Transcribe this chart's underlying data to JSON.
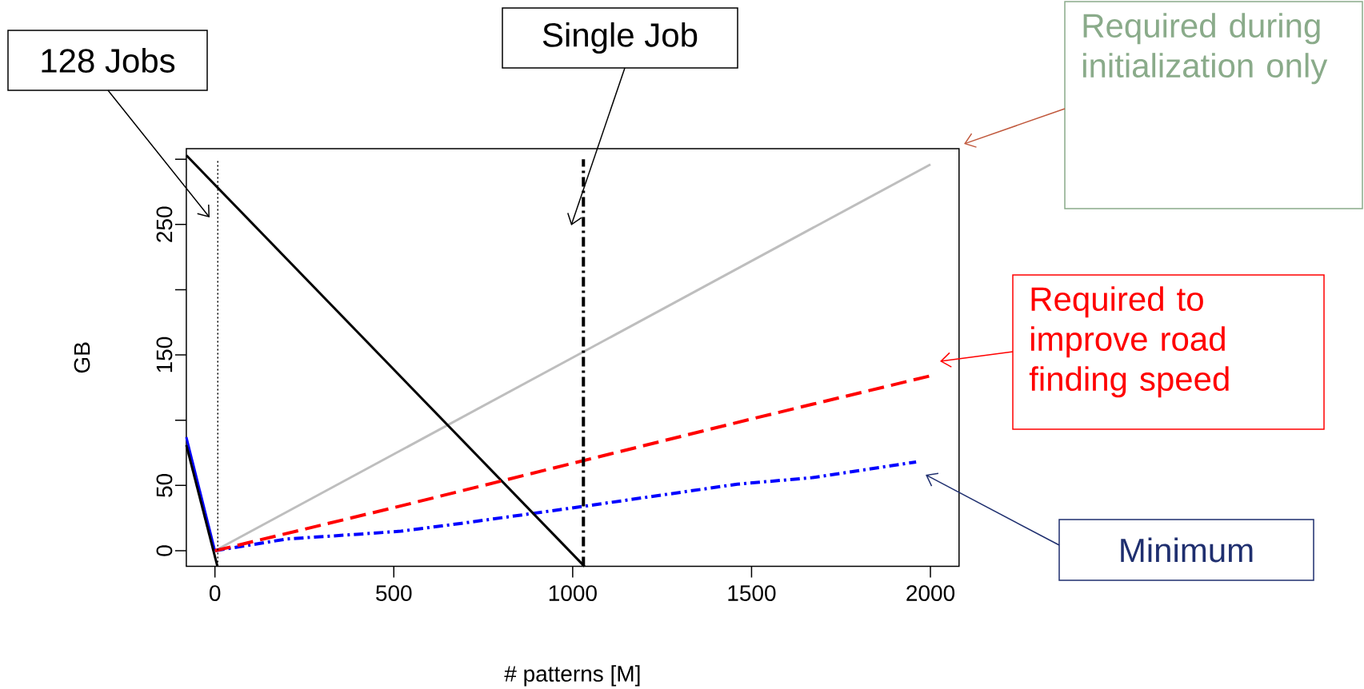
{
  "chart_data": {
    "type": "line",
    "xlabel": "# patterns [M]",
    "ylabel": "GB",
    "xlim": [
      -80,
      2080
    ],
    "ylim": [
      -12,
      308
    ],
    "xticks": [
      0,
      500,
      1000,
      1500,
      2000
    ],
    "yticks": [
      0,
      50,
      {
        "value": 100,
        "label": null
      },
      150,
      {
        "value": 200,
        "label": null
      },
      250,
      {
        "value": 300,
        "label": null
      }
    ],
    "series": [
      {
        "color": "#bebebe",
        "line_style": "solid",
        "x": [
          0,
          2000
        ],
        "values": [
          0,
          296
        ]
      },
      {
        "color": "#0000ff",
        "line_style": "dashdot",
        "x": [
          0,
          200,
          420,
          520,
          690,
          1030,
          1460,
          1670,
          1960
        ],
        "values": [
          0,
          9,
          13,
          15,
          21,
          34,
          51,
          56,
          68
        ]
      },
      {
        "color": "#0000ff",
        "line_style": "solid",
        "x": [
          -80,
          0
        ],
        "values": [
          87,
          0
        ]
      },
      {
        "color": "#000000",
        "line_style": "solid",
        "x": [
          -80,
          7
        ],
        "values": [
          81,
          -12
        ]
      },
      {
        "color": "#000000",
        "line_style": "solid",
        "x": [
          -80,
          1033
        ],
        "values": [
          303,
          -12
        ]
      },
      {
        "color": "#ff0000",
        "line_style": "dashed",
        "x": [
          0,
          500,
          1000,
          1500,
          2000
        ],
        "values": [
          0,
          33,
          67,
          101,
          134
        ]
      }
    ],
    "ref_lines": [
      {
        "axis": "x",
        "value": 8,
        "line_style": "dotted",
        "color": "#000000"
      },
      {
        "axis": "x",
        "value": 1030,
        "line_style": "dashdot",
        "color": "#000000"
      }
    ],
    "annotations": [
      "128 Jobs",
      "Single Job",
      "Required during initialization only",
      "Required to improve road finding speed",
      "Minimum"
    ]
  }
}
